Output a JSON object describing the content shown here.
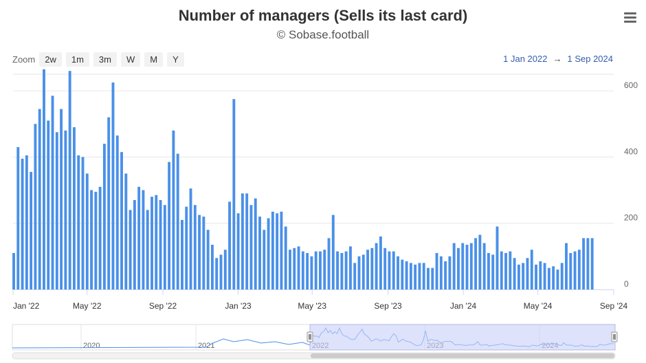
{
  "title": "Number of managers (Sells its last card)",
  "subtitle": "© Sobase.football",
  "menu_icon": "hamburger-icon",
  "zoom": {
    "label": "Zoom",
    "buttons": [
      "2w",
      "1m",
      "3m",
      "W",
      "M",
      "Y"
    ]
  },
  "range": {
    "from": "1 Jan 2022",
    "arrow": "→",
    "to": "1 Sep 2024"
  },
  "colors": {
    "bar": "#4a90e8",
    "navigator_mask": "#c8d0f8",
    "navigator_line": "#4a90e8"
  },
  "chart_data": {
    "type": "bar",
    "x_start": "2022-01-01",
    "x_end": "2024-09-01",
    "interval": "weekly",
    "ylim": [
      0,
      650
    ],
    "y_ticks": [
      0,
      200,
      400,
      600
    ],
    "x_tick_labels": [
      "Jan '22",
      "May '22",
      "Sep '22",
      "Jan '23",
      "May '23",
      "Sep '23",
      "Jan '24",
      "May '24",
      "Sep '24"
    ],
    "series": [
      {
        "values": [
          110,
          430,
          395,
          405,
          355,
          500,
          545,
          665,
          510,
          585,
          475,
          545,
          480,
          660,
          490,
          405,
          400,
          350,
          300,
          295,
          310,
          440,
          520,
          625,
          465,
          415,
          350,
          240,
          270,
          310,
          300,
          240,
          280,
          285,
          270,
          255,
          385,
          480,
          410,
          210,
          250,
          305,
          255,
          225,
          220,
          180,
          135,
          95,
          105,
          120,
          265,
          575,
          230,
          290,
          290,
          255,
          275,
          220,
          180,
          215,
          235,
          230,
          235,
          190,
          120,
          125,
          130,
          115,
          110,
          100,
          115,
          115,
          120,
          155,
          225,
          115,
          110,
          115,
          130,
          80,
          100,
          105,
          120,
          125,
          140,
          160,
          125,
          115,
          115,
          100,
          90,
          85,
          80,
          75,
          80,
          80,
          65,
          65,
          110,
          100,
          85,
          100,
          140,
          125,
          140,
          135,
          140,
          155,
          165,
          140,
          110,
          105,
          190,
          115,
          110,
          115,
          95,
          75,
          80,
          95,
          120,
          75,
          85,
          80,
          65,
          70,
          60,
          80,
          140,
          110,
          115,
          120,
          155,
          155,
          155
        ]
      }
    ],
    "navigator": {
      "year_labels": [
        "2020",
        "2021",
        "2022",
        "2023",
        "2024"
      ]
    }
  }
}
